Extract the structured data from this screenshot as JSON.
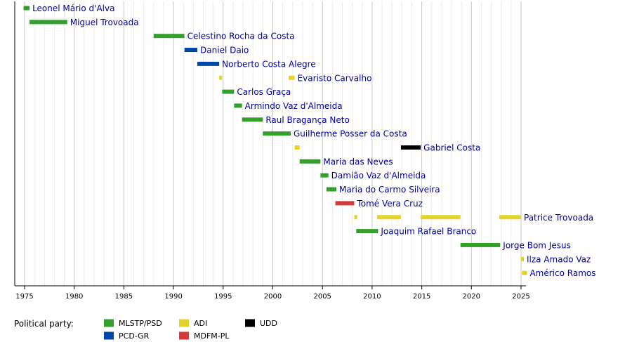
{
  "chart_data": {
    "type": "timeline",
    "xlim": [
      1975,
      2025
    ],
    "x_ticks": [
      1975,
      1980,
      1985,
      1990,
      1995,
      2000,
      2005,
      2010,
      2015,
      2020,
      2025
    ],
    "grid": true,
    "people": [
      {
        "name": "Leonel Mário d'Alva",
        "terms": [
          {
            "start": 1974.9,
            "end": 1975.5,
            "party": "MLSTP/PSD"
          }
        ]
      },
      {
        "name": "Miguel Trovoada",
        "terms": [
          {
            "start": 1975.5,
            "end": 1979.3,
            "party": "MLSTP/PSD"
          }
        ]
      },
      {
        "name": "Celestino Rocha da Costa",
        "terms": [
          {
            "start": 1988.0,
            "end": 1991.1,
            "party": "MLSTP/PSD"
          }
        ]
      },
      {
        "name": "Daniel Daio",
        "terms": [
          {
            "start": 1991.1,
            "end": 1992.4,
            "party": "PCD-GR"
          }
        ]
      },
      {
        "name": "Norberto Costa Alegre",
        "terms": [
          {
            "start": 1992.4,
            "end": 1994.6,
            "party": "PCD-GR"
          }
        ]
      },
      {
        "name": "Evaristo Carvalho",
        "terms": [
          {
            "start": 1994.6,
            "end": 1994.9,
            "party": "ADI"
          },
          {
            "start": 2001.6,
            "end": 2002.2,
            "party": "ADI"
          }
        ]
      },
      {
        "name": "Carlos Graça",
        "terms": [
          {
            "start": 1994.9,
            "end": 1996.1,
            "party": "MLSTP/PSD"
          }
        ]
      },
      {
        "name": "Armindo Vaz d'Almeida",
        "terms": [
          {
            "start": 1996.1,
            "end": 1996.9,
            "party": "MLSTP/PSD"
          }
        ]
      },
      {
        "name": "Raul Bragança Neto",
        "terms": [
          {
            "start": 1996.9,
            "end": 1999.0,
            "party": "MLSTP/PSD"
          }
        ]
      },
      {
        "name": "Guilherme Posser da Costa",
        "terms": [
          {
            "start": 1999.0,
            "end": 2001.8,
            "party": "MLSTP/PSD"
          }
        ]
      },
      {
        "name": "Gabriel Costa",
        "terms": [
          {
            "start": 2002.2,
            "end": 2002.7,
            "party": "ADI"
          },
          {
            "start": 2012.9,
            "end": 2014.9,
            "party": "UDD"
          }
        ]
      },
      {
        "name": "Maria das Neves",
        "terms": [
          {
            "start": 2002.7,
            "end": 2004.8,
            "party": "MLSTP/PSD"
          }
        ]
      },
      {
        "name": "Damião Vaz d'Almeida",
        "terms": [
          {
            "start": 2004.8,
            "end": 2005.6,
            "party": "MLSTP/PSD"
          }
        ]
      },
      {
        "name": "Maria do Carmo Silveira",
        "terms": [
          {
            "start": 2005.4,
            "end": 2006.4,
            "party": "MLSTP/PSD"
          }
        ]
      },
      {
        "name": "Tomé Vera Cruz",
        "terms": [
          {
            "start": 2006.3,
            "end": 2008.2,
            "party": "MDFM-PL"
          }
        ]
      },
      {
        "name": "Patrice Trovoada",
        "terms": [
          {
            "start": 2008.2,
            "end": 2008.5,
            "party": "ADI"
          },
          {
            "start": 2010.5,
            "end": 2012.9,
            "party": "ADI"
          },
          {
            "start": 2014.9,
            "end": 2018.9,
            "party": "ADI"
          },
          {
            "start": 2022.8,
            "end": 2025.0,
            "party": "ADI"
          }
        ]
      },
      {
        "name": "Joaquim Rafael Branco",
        "terms": [
          {
            "start": 2008.4,
            "end": 2010.6,
            "party": "MLSTP/PSD"
          }
        ]
      },
      {
        "name": "Jorge Bom Jesus",
        "terms": [
          {
            "start": 2018.9,
            "end": 2022.9,
            "party": "MLSTP/PSD"
          }
        ]
      },
      {
        "name": "Ilza Amado Vaz",
        "terms": [
          {
            "start": 2025.0,
            "end": 2025.1,
            "party": "ADI"
          }
        ]
      },
      {
        "name": "Américo Ramos",
        "terms": [
          {
            "start": 2025.1,
            "end": 2025.6,
            "party": "ADI"
          }
        ]
      }
    ],
    "legend": {
      "title": "Political party:",
      "items": [
        {
          "party": "MLSTP/PSD",
          "color": "#33a02c"
        },
        {
          "party": "PCD-GR",
          "color": "#0047ab"
        },
        {
          "party": "ADI",
          "color": "#e5d22a"
        },
        {
          "party": "MDFM-PL",
          "color": "#d33a3a"
        },
        {
          "party": "UDD",
          "color": "#000000"
        }
      ],
      "placement": "bottom-left"
    }
  }
}
